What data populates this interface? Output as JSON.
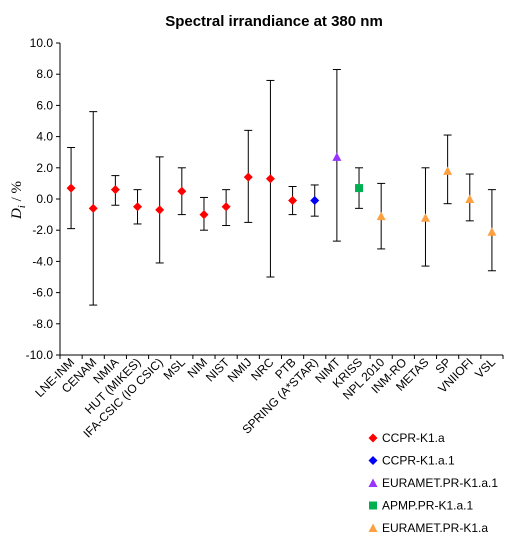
{
  "chart_data": {
    "type": "scatter",
    "title": "Spectral irrandiance at 380 nm",
    "ylabel_prefix": "D",
    "ylabel_sub": "i",
    "ylabel_suffix": " / %",
    "ylim": [
      -10,
      10
    ],
    "yticks": [
      10,
      8,
      6,
      4,
      2,
      0,
      -2,
      -4,
      -6,
      -8,
      -10
    ],
    "ytick_labels": [
      "10.0",
      "8.0",
      "6.0",
      "4.0",
      "2.0",
      "0.0",
      "-2.0",
      "-4.0",
      "-6.0",
      "-8.0",
      "-10.0"
    ],
    "grid": false,
    "legend_position": "bottom-right",
    "categories": [
      "LNE-INM",
      "CENAM",
      "NMIA",
      "HUT (MIKES)",
      "IFA-CSIC (IO CSIC)",
      "MSL",
      "NIM",
      "NIST",
      "NMIJ",
      "NRC",
      "PTB",
      "SPRING (A*STAR)",
      "NIMT",
      "KRISS",
      "NPL 2010",
      "INM-RO",
      "METAS",
      "SP",
      "VNIIOFI",
      "VSL"
    ],
    "series": [
      {
        "name": "CCPR-K1.a",
        "color": "#ff0000",
        "marker": "diamond",
        "points": [
          {
            "category": "LNE-INM",
            "y": 0.7,
            "err_high": 3.3,
            "err_low": -1.9
          },
          {
            "category": "CENAM",
            "y": -0.6,
            "err_high": 5.6,
            "err_low": -6.8
          },
          {
            "category": "NMIA",
            "y": 0.6,
            "err_high": 1.5,
            "err_low": -0.4
          },
          {
            "category": "HUT (MIKES)",
            "y": -0.5,
            "err_high": 0.6,
            "err_low": -1.6
          },
          {
            "category": "IFA-CSIC (IO CSIC)",
            "y": -0.7,
            "err_high": 2.7,
            "err_low": -4.1
          },
          {
            "category": "MSL",
            "y": 0.5,
            "err_high": 2.0,
            "err_low": -1.0
          },
          {
            "category": "NIM",
            "y": -1.0,
            "err_high": 0.1,
            "err_low": -2.0
          },
          {
            "category": "NIST",
            "y": -0.5,
            "err_high": 0.6,
            "err_low": -1.7
          },
          {
            "category": "NMIJ",
            "y": 1.4,
            "err_high": 4.4,
            "err_low": -1.5
          },
          {
            "category": "NRC",
            "y": 1.3,
            "err_high": 7.6,
            "err_low": -5.0
          },
          {
            "category": "PTB",
            "y": -0.1,
            "err_high": 0.8,
            "err_low": -1.0
          }
        ]
      },
      {
        "name": "CCPR-K1.a.1",
        "color": "#0000ff",
        "marker": "diamond",
        "points": [
          {
            "category": "SPRING (A*STAR)",
            "y": -0.1,
            "err_high": 0.9,
            "err_low": -1.1
          }
        ]
      },
      {
        "name": "EURAMET.PR-K1.a.1",
        "color": "#9933ff",
        "marker": "triangle",
        "points": [
          {
            "category": "NIMT",
            "y": 2.7,
            "err_high": 8.3,
            "err_low": -2.7
          }
        ]
      },
      {
        "name": "APMP.PR-K1.a.1",
        "color": "#00b050",
        "marker": "square",
        "points": [
          {
            "category": "KRISS",
            "y": 0.7,
            "err_high": 2.0,
            "err_low": -0.6
          }
        ]
      },
      {
        "name": "EURAMET.PR-K1.a",
        "color": "#ffa040",
        "marker": "triangle",
        "points": [
          {
            "category": "NPL 2010",
            "y": -1.1,
            "err_high": 1.0,
            "err_low": -3.2
          },
          {
            "category": "METAS",
            "y": -1.2,
            "err_high": 2.0,
            "err_low": -4.3
          },
          {
            "category": "SP",
            "y": 1.8,
            "err_high": 4.1,
            "err_low": -0.3
          },
          {
            "category": "VNIIOFI",
            "y": 0.0,
            "err_high": 1.6,
            "err_low": -1.4
          },
          {
            "category": "VSL",
            "y": -2.1,
            "err_high": 0.6,
            "err_low": -4.6
          }
        ]
      }
    ]
  }
}
